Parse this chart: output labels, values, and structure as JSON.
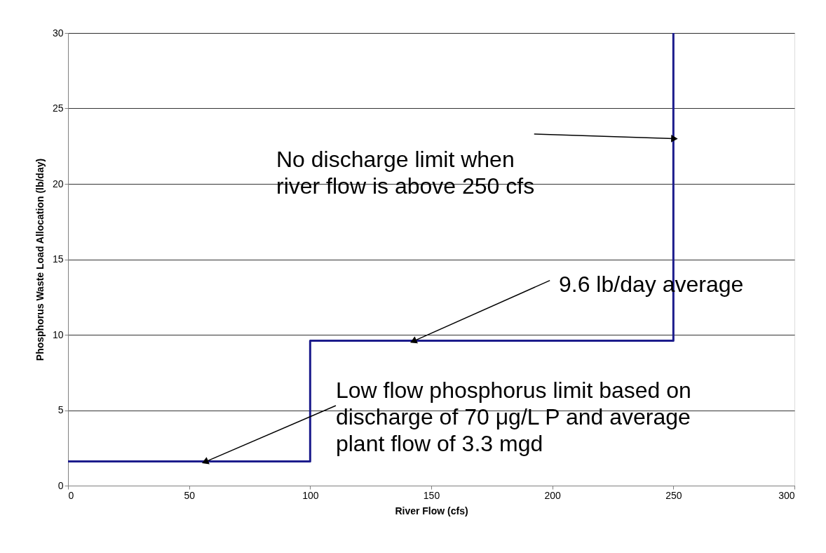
{
  "chart_data": {
    "type": "line",
    "xlabel": "River Flow (cfs)",
    "ylabel": "Phosphorus Waste Load Allocation (lb/day)",
    "xlim": [
      0,
      300
    ],
    "xticks": [
      0,
      50,
      100,
      150,
      200,
      250,
      300
    ],
    "ylim": [
      0,
      30
    ],
    "yticks": [
      0,
      5,
      10,
      15,
      20,
      25,
      30
    ],
    "grid": "y",
    "marker": "none",
    "line_style": "solid",
    "series": [
      {
        "color": "#1c1c8c",
        "x": [
          0,
          100,
          100,
          250,
          250
        ],
        "values": [
          1.6,
          1.6,
          9.6,
          9.6,
          30
        ]
      }
    ],
    "annotations": [
      {
        "text": "No discharge limit when\nriver flow is above 250 cfs",
        "x": 250,
        "y": 23
      },
      {
        "text": "9.6 lb/day average",
        "x": 143,
        "y": 9.6
      },
      {
        "text": "Low flow phosphorus limit based on\ndischarge of 70 μg/L P and average\nplant flow of 3.3 mgd",
        "x": 57,
        "y": 1.6
      }
    ]
  }
}
